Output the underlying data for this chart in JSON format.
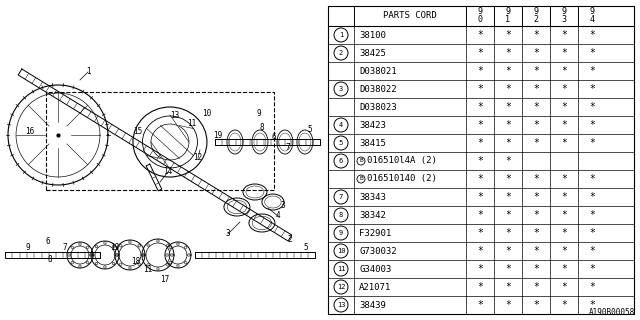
{
  "figure_code": "A190B00058",
  "table": {
    "rows": [
      {
        "num": "1",
        "part": "38100",
        "circled_b": false,
        "vals": [
          "*",
          "*",
          "*",
          "*",
          "*"
        ]
      },
      {
        "num": "2",
        "part": "38425",
        "circled_b": false,
        "vals": [
          "*",
          "*",
          "*",
          "*",
          "*"
        ]
      },
      {
        "num": "",
        "part": "D038021",
        "circled_b": false,
        "vals": [
          "*",
          "*",
          "*",
          "*",
          "*"
        ]
      },
      {
        "num": "3",
        "part": "D038022",
        "circled_b": false,
        "vals": [
          "*",
          "*",
          "*",
          "*",
          "*"
        ]
      },
      {
        "num": "",
        "part": "D038023",
        "circled_b": false,
        "vals": [
          "*",
          "*",
          "*",
          "*",
          "*"
        ]
      },
      {
        "num": "4",
        "part": "38423",
        "circled_b": false,
        "vals": [
          "*",
          "*",
          "*",
          "*",
          "*"
        ]
      },
      {
        "num": "5",
        "part": "38415",
        "circled_b": false,
        "vals": [
          "*",
          "*",
          "*",
          "*",
          "*"
        ]
      },
      {
        "num": "6",
        "part": "016510l4A (2)",
        "circled_b": true,
        "vals": [
          "*",
          "*",
          "",
          "",
          ""
        ]
      },
      {
        "num": "",
        "part": "016510140 (2)",
        "circled_b": true,
        "vals": [
          "*",
          "*",
          "*",
          "*",
          "*"
        ]
      },
      {
        "num": "7",
        "part": "38343",
        "circled_b": false,
        "vals": [
          "*",
          "*",
          "*",
          "*",
          "*"
        ]
      },
      {
        "num": "8",
        "part": "38342",
        "circled_b": false,
        "vals": [
          "*",
          "*",
          "*",
          "*",
          "*"
        ]
      },
      {
        "num": "9",
        "part": "F32901",
        "circled_b": false,
        "vals": [
          "*",
          "*",
          "*",
          "*",
          "*"
        ]
      },
      {
        "num": "10",
        "part": "G730032",
        "circled_b": false,
        "vals": [
          "*",
          "*",
          "*",
          "*",
          "*"
        ]
      },
      {
        "num": "11",
        "part": "G34003",
        "circled_b": false,
        "vals": [
          "*",
          "*",
          "*",
          "*",
          "*"
        ]
      },
      {
        "num": "12",
        "part": "A21071",
        "circled_b": false,
        "vals": [
          "*",
          "*",
          "*",
          "*",
          "*"
        ]
      },
      {
        "num": "13",
        "part": "38439",
        "circled_b": false,
        "vals": [
          "*",
          "*",
          "*",
          "*",
          "*"
        ]
      }
    ]
  }
}
